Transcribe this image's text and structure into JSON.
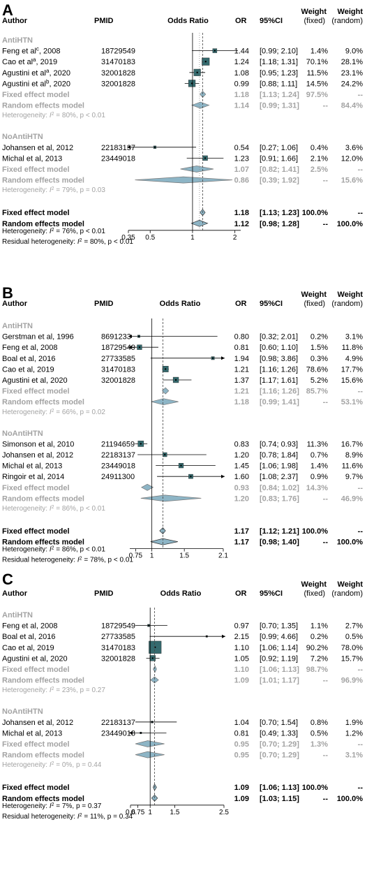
{
  "headers": {
    "author": "Author",
    "pmid": "PMID",
    "odds_ratio": "Odds Ratio",
    "or": "OR",
    "ci": "95%CI",
    "weight": "Weight",
    "fixed": "(fixed)",
    "random": "(random)"
  },
  "chart_data": [
    {
      "type": "forest",
      "panel": "A",
      "axis": {
        "scale": "log",
        "min": 0.35,
        "max": 2.2,
        "ticks": [
          0.35,
          0.5,
          1,
          2
        ],
        "tick_labels": [
          "0.35",
          "0.5",
          "1",
          "2"
        ]
      },
      "fixed_or": 1.18,
      "random_or": 1.12,
      "groups": [
        {
          "name": "AntiHTN",
          "studies": [
            {
              "author": "Feng et al",
              "sup": "c",
              "year": ", 2008",
              "pmid": "18729549",
              "or": 1.44,
              "lo": 0.99,
              "hi": 2.1,
              "or_text": "1.44",
              "ci_text": "[0.99; 2.10]",
              "wf": "1.4%",
              "wr": "9.0%",
              "wr_num": 9.0
            },
            {
              "author": "Cao et al",
              "sup": "a",
              "year": ", 2019",
              "pmid": "31470183",
              "or": 1.24,
              "lo": 1.18,
              "hi": 1.31,
              "or_text": "1.24",
              "ci_text": "[1.18; 1.31]",
              "wf": "70.1%",
              "wr": "28.1%",
              "wr_num": 28.1
            },
            {
              "author": "Agustini et al",
              "sup": "a",
              "year": ", 2020",
              "pmid": "32001828",
              "or": 1.08,
              "lo": 0.95,
              "hi": 1.23,
              "or_text": "1.08",
              "ci_text": "[0.95; 1.23]",
              "wf": "11.5%",
              "wr": "23.1%",
              "wr_num": 23.1
            },
            {
              "author": "Agustini et al",
              "sup": "b",
              "year": ", 2020",
              "pmid": "32001828",
              "or": 0.99,
              "lo": 0.88,
              "hi": 1.11,
              "or_text": "0.99",
              "ci_text": "[0.88; 1.11]",
              "wf": "14.5%",
              "wr": "24.2%",
              "wr_num": 24.2
            }
          ],
          "fixed": {
            "label": "Fixed effect model",
            "or": 1.18,
            "lo": 1.13,
            "hi": 1.24,
            "or_text": "1.18",
            "ci_text": "[1.13; 1.24]",
            "wf": "97.5%",
            "wr": "--"
          },
          "random": {
            "label": "Random effects model",
            "or": 1.14,
            "lo": 0.99,
            "hi": 1.31,
            "or_text": "1.14",
            "ci_text": "[0.99; 1.31]",
            "wf": "--",
            "wr": "84.4%"
          },
          "het": {
            "pre": "Heterogeneity: ",
            "i2": "80%",
            "p": "p < 0.01"
          }
        },
        {
          "name": "NoAntiHTN",
          "studies": [
            {
              "author": "Johansen et al, 2012",
              "sup": "",
              "year": "",
              "pmid": "22183137",
              "or": 0.54,
              "lo": 0.27,
              "hi": 1.06,
              "or_text": "0.54",
              "ci_text": "[0.27; 1.06]",
              "wf": "0.4%",
              "wr": "3.6%",
              "wr_num": 3.6
            },
            {
              "author": "Michal et al, 2013",
              "sup": "",
              "year": "",
              "pmid": "23449018",
              "or": 1.23,
              "lo": 0.91,
              "hi": 1.66,
              "or_text": "1.23",
              "ci_text": "[0.91; 1.66]",
              "wf": "2.1%",
              "wr": "12.0%",
              "wr_num": 12.0
            }
          ],
          "fixed": {
            "label": "Fixed effect model",
            "or": 1.07,
            "lo": 0.82,
            "hi": 1.41,
            "or_text": "1.07",
            "ci_text": "[0.82; 1.41]",
            "wf": "2.5%",
            "wr": "--"
          },
          "random": {
            "label": "Random effects model",
            "or": 0.86,
            "lo": 0.39,
            "hi": 1.92,
            "or_text": "0.86",
            "ci_text": "[0.39; 1.92]",
            "wf": "--",
            "wr": "15.6%"
          },
          "het": {
            "pre": "Heterogeneity: ",
            "i2": "79%",
            "p": "p = 0.03"
          }
        }
      ],
      "overall_fixed": {
        "label": "Fixed effect model",
        "or": 1.18,
        "lo": 1.13,
        "hi": 1.23,
        "or_text": "1.18",
        "ci_text": "[1.13; 1.23]",
        "wf": "100.0%",
        "wr": "--"
      },
      "overall_random": {
        "label": "Random effects model",
        "or": 1.12,
        "lo": 0.98,
        "hi": 1.28,
        "or_text": "1.12",
        "ci_text": "[0.98; 1.28]",
        "wf": "--",
        "wr": "100.0%"
      },
      "het": {
        "pre": "Heterogeneity: ",
        "i2": "76%",
        "p": "p < 0.01"
      },
      "resid": {
        "pre": "Residual heterogeneity: ",
        "i2": "80%",
        "p": "p < 0.01"
      }
    },
    {
      "type": "forest",
      "panel": "B",
      "axis": {
        "scale": "linear",
        "min": 0.66,
        "max": 2.1,
        "ticks": [
          0.75,
          1,
          1.5,
          2.1
        ],
        "tick_labels": [
          "0.75",
          "1",
          "1.5",
          "2.1"
        ]
      },
      "fixed_or": 1.17,
      "random_or": 1.17,
      "groups": [
        {
          "name": "AntiHTN",
          "studies": [
            {
              "author": "Gerstman et al, 1996",
              "sup": "",
              "year": "",
              "pmid": "8691233",
              "or": 0.8,
              "lo": 0.32,
              "hi": 2.01,
              "or_text": "0.80",
              "ci_text": "[0.32; 2.01]",
              "wf": "0.2%",
              "wr": "3.1%",
              "wr_num": 3.1
            },
            {
              "author": "Feng et al, 2008",
              "sup": "",
              "year": "",
              "pmid": "18729549",
              "or": 0.81,
              "lo": 0.6,
              "hi": 1.1,
              "or_text": "0.81",
              "ci_text": "[0.60; 1.10]",
              "wf": "1.5%",
              "wr": "11.8%",
              "wr_num": 11.8
            },
            {
              "author": "Boal et al, 2016",
              "sup": "",
              "year": "",
              "pmid": "27733585",
              "or": 1.94,
              "lo": 0.98,
              "hi": 3.86,
              "or_text": "1.94",
              "ci_text": "[0.98; 3.86]",
              "wf": "0.3%",
              "wr": "4.9%",
              "wr_num": 4.9
            },
            {
              "author": "Cao et al, 2019",
              "sup": "",
              "year": "",
              "pmid": "31470183",
              "or": 1.21,
              "lo": 1.16,
              "hi": 1.26,
              "or_text": "1.21",
              "ci_text": "[1.16; 1.26]",
              "wf": "78.6%",
              "wr": "17.7%",
              "wr_num": 17.7
            },
            {
              "author": "Agustini et al, 2020",
              "sup": "",
              "year": "",
              "pmid": "32001828",
              "or": 1.37,
              "lo": 1.17,
              "hi": 1.61,
              "or_text": "1.37",
              "ci_text": "[1.17; 1.61]",
              "wf": "5.2%",
              "wr": "15.6%",
              "wr_num": 15.6
            }
          ],
          "fixed": {
            "label": "Fixed effect model",
            "or": 1.21,
            "lo": 1.16,
            "hi": 1.26,
            "or_text": "1.21",
            "ci_text": "[1.16; 1.26]",
            "wf": "85.7%",
            "wr": "--"
          },
          "random": {
            "label": "Random effects model",
            "or": 1.18,
            "lo": 0.99,
            "hi": 1.41,
            "or_text": "1.18",
            "ci_text": "[0.99; 1.41]",
            "wf": "--",
            "wr": "53.1%"
          },
          "het": {
            "pre": "Heterogeneity: ",
            "i2": "66%",
            "p": "p = 0.02"
          }
        },
        {
          "name": "NoAntiHTN",
          "studies": [
            {
              "author": "Simonson et al, 2010",
              "sup": "",
              "year": "",
              "pmid": "21194659",
              "or": 0.83,
              "lo": 0.74,
              "hi": 0.93,
              "or_text": "0.83",
              "ci_text": "[0.74; 0.93]",
              "wf": "11.3%",
              "wr": "16.7%",
              "wr_num": 16.7
            },
            {
              "author": "Johansen et al, 2012",
              "sup": "",
              "year": "",
              "pmid": "22183137",
              "or": 1.2,
              "lo": 0.78,
              "hi": 1.84,
              "or_text": "1.20",
              "ci_text": "[0.78; 1.84]",
              "wf": "0.7%",
              "wr": "8.9%",
              "wr_num": 8.9
            },
            {
              "author": "Michal et al, 2013",
              "sup": "",
              "year": "",
              "pmid": "23449018",
              "or": 1.45,
              "lo": 1.06,
              "hi": 1.98,
              "or_text": "1.45",
              "ci_text": "[1.06; 1.98]",
              "wf": "1.4%",
              "wr": "11.6%",
              "wr_num": 11.6
            },
            {
              "author": "Ringoir et al, 2014",
              "sup": "",
              "year": "",
              "pmid": "24911300",
              "or": 1.6,
              "lo": 1.08,
              "hi": 2.37,
              "or_text": "1.60",
              "ci_text": "[1.08; 2.37]",
              "wf": "0.9%",
              "wr": "9.7%",
              "wr_num": 9.7
            }
          ],
          "fixed": {
            "label": "Fixed effect model",
            "or": 0.93,
            "lo": 0.84,
            "hi": 1.02,
            "or_text": "0.93",
            "ci_text": "[0.84; 1.02]",
            "wf": "14.3%",
            "wr": "--"
          },
          "random": {
            "label": "Random effects model",
            "or": 1.2,
            "lo": 0.83,
            "hi": 1.76,
            "or_text": "1.20",
            "ci_text": "[0.83; 1.76]",
            "wf": "--",
            "wr": "46.9%"
          },
          "het": {
            "pre": "Heterogeneity: ",
            "i2": "86%",
            "p": "p < 0.01"
          }
        }
      ],
      "overall_fixed": {
        "label": "Fixed effect model",
        "or": 1.17,
        "lo": 1.12,
        "hi": 1.21,
        "or_text": "1.17",
        "ci_text": "[1.12; 1.21]",
        "wf": "100.0%",
        "wr": "--"
      },
      "overall_random": {
        "label": "Random effects model",
        "or": 1.17,
        "lo": 0.98,
        "hi": 1.4,
        "or_text": "1.17",
        "ci_text": "[0.98; 1.40]",
        "wf": "--",
        "wr": "100.0%"
      },
      "het": {
        "pre": "Heterogeneity: ",
        "i2": "86%",
        "p": "p < 0.01"
      },
      "resid": {
        "pre": "Residual heterogeneity: ",
        "i2": "78%",
        "p": "p < 0.01"
      }
    },
    {
      "type": "forest",
      "panel": "C",
      "axis": {
        "scale": "linear",
        "min": 0.6,
        "max": 2.5,
        "ticks": [
          0.6,
          0.75,
          1,
          1.5,
          2.5
        ],
        "tick_labels": [
          "0.6",
          "0.75",
          "1",
          "1.5",
          "2.5"
        ]
      },
      "fixed_or": 1.09,
      "random_or": 1.09,
      "groups": [
        {
          "name": "AntiHTN",
          "studies": [
            {
              "author": "Feng et al, 2008",
              "sup": "",
              "year": "",
              "pmid": "18729549",
              "or": 0.97,
              "lo": 0.7,
              "hi": 1.35,
              "or_text": "0.97",
              "ci_text": "[0.70; 1.35]",
              "wf": "1.1%",
              "wr": "2.7%",
              "wr_num": 2.7
            },
            {
              "author": "Boal et al, 2016",
              "sup": "",
              "year": "",
              "pmid": "27733585",
              "or": 2.15,
              "lo": 0.99,
              "hi": 4.66,
              "or_text": "2.15",
              "ci_text": "[0.99; 4.66]",
              "wf": "0.2%",
              "wr": "0.5%",
              "wr_num": 0.5
            },
            {
              "author": "Cao et al, 2019",
              "sup": "",
              "year": "",
              "pmid": "31470183",
              "or": 1.1,
              "lo": 1.06,
              "hi": 1.14,
              "or_text": "1.10",
              "ci_text": "[1.06; 1.14]",
              "wf": "90.2%",
              "wr": "78.0%",
              "wr_num": 78.0
            },
            {
              "author": "Agustini et al, 2020",
              "sup": "",
              "year": "",
              "pmid": "32001828",
              "or": 1.05,
              "lo": 0.92,
              "hi": 1.19,
              "or_text": "1.05",
              "ci_text": "[0.92; 1.19]",
              "wf": "7.2%",
              "wr": "15.7%",
              "wr_num": 15.7
            }
          ],
          "fixed": {
            "label": "Fixed effect model",
            "or": 1.1,
            "lo": 1.06,
            "hi": 1.13,
            "or_text": "1.10",
            "ci_text": "[1.06; 1.13]",
            "wf": "98.7%",
            "wr": "--"
          },
          "random": {
            "label": "Random effects model",
            "or": 1.09,
            "lo": 1.01,
            "hi": 1.17,
            "or_text": "1.09",
            "ci_text": "[1.01; 1.17]",
            "wf": "--",
            "wr": "96.9%"
          },
          "het": {
            "pre": "Heterogeneity: ",
            "i2": "23%",
            "p": "p = 0.27"
          }
        },
        {
          "name": "NoAntiHTN",
          "studies": [
            {
              "author": "Johansen et al, 2012",
              "sup": "",
              "year": "",
              "pmid": "22183137",
              "or": 1.04,
              "lo": 0.7,
              "hi": 1.54,
              "or_text": "1.04",
              "ci_text": "[0.70; 1.54]",
              "wf": "0.8%",
              "wr": "1.9%",
              "wr_num": 1.9
            },
            {
              "author": "Michal et al, 2013",
              "sup": "",
              "year": "",
              "pmid": "23449018",
              "or": 0.81,
              "lo": 0.49,
              "hi": 1.33,
              "or_text": "0.81",
              "ci_text": "[0.49; 1.33]",
              "wf": "0.5%",
              "wr": "1.2%",
              "wr_num": 1.2
            }
          ],
          "fixed": {
            "label": "Fixed effect model",
            "or": 0.95,
            "lo": 0.7,
            "hi": 1.29,
            "or_text": "0.95",
            "ci_text": "[0.70; 1.29]",
            "wf": "1.3%",
            "wr": "--"
          },
          "random": {
            "label": "Random effects model",
            "or": 0.95,
            "lo": 0.7,
            "hi": 1.29,
            "or_text": "0.95",
            "ci_text": "[0.70; 1.29]",
            "wf": "--",
            "wr": "3.1%"
          },
          "het": {
            "pre": "Heterogeneity: ",
            "i2": "0%",
            "p": "p = 0.44"
          }
        }
      ],
      "overall_fixed": {
        "label": "Fixed effect model",
        "or": 1.09,
        "lo": 1.06,
        "hi": 1.13,
        "or_text": "1.09",
        "ci_text": "[1.06; 1.13]",
        "wf": "100.0%",
        "wr": "--"
      },
      "overall_random": {
        "label": "Random effects model",
        "or": 1.09,
        "lo": 1.03,
        "hi": 1.15,
        "or_text": "1.09",
        "ci_text": "[1.03; 1.15]",
        "wf": "--",
        "wr": "100.0%"
      },
      "het": {
        "pre": "Heterogeneity: ",
        "i2": "7%",
        "p": "p = 0.37"
      },
      "resid": {
        "pre": "Residual heterogeneity: ",
        "i2": "11%",
        "p": "p = 0.34"
      }
    }
  ],
  "colors": {
    "square": "#356a6e",
    "diamond": "#8db5c6",
    "gray": "#a3a3a3",
    "black": "#000000"
  }
}
